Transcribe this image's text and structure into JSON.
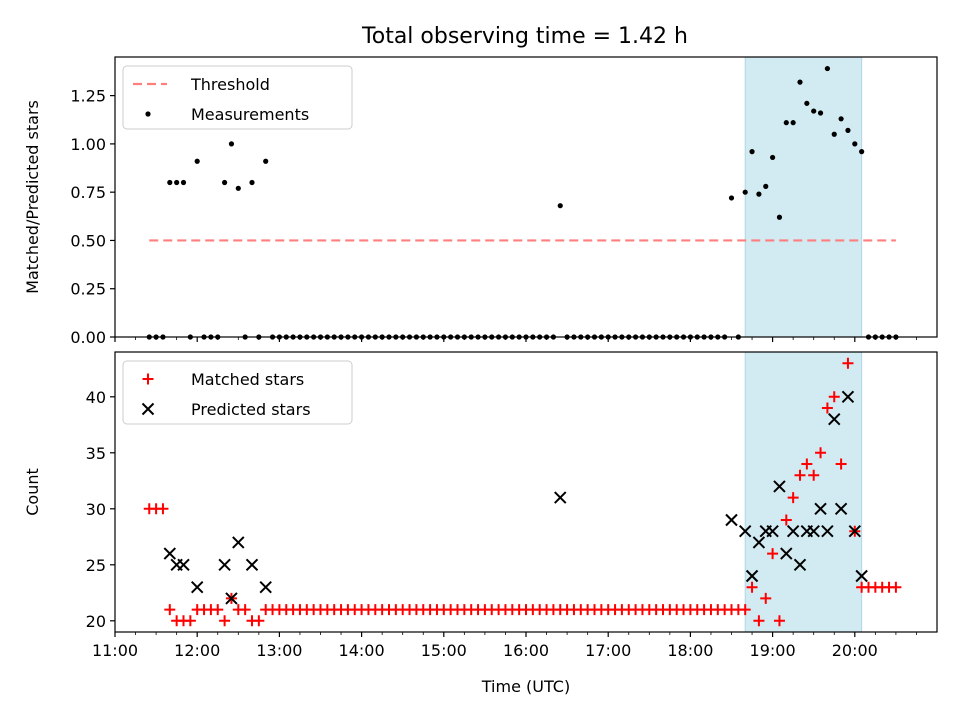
{
  "title": "Total observing time = 1.42 h",
  "colors": {
    "threshold": "#ff7f7f",
    "shade": "#add8e6",
    "matched": "#ff0000",
    "predicted": "#000000",
    "measurement": "#000000"
  },
  "chart_data": [
    {
      "type": "scatter",
      "panel": "top",
      "ylabel": "Matched/Predicted stars",
      "xlabel": "",
      "xlim": [
        "11:00",
        "21:00"
      ],
      "ylim": [
        0,
        1.45
      ],
      "x_ticks": [
        "11:00",
        "12:00",
        "13:00",
        "14:00",
        "15:00",
        "16:00",
        "17:00",
        "18:00",
        "19:00",
        "20:00"
      ],
      "y_ticks": [
        "0.00",
        "0.25",
        "0.50",
        "0.75",
        "1.00",
        "1.25"
      ],
      "legend": {
        "position": "top-left",
        "entries": [
          "Threshold",
          "Measurements"
        ]
      },
      "shaded_interval": [
        "18:40",
        "20:05"
      ],
      "threshold": {
        "name": "Threshold",
        "value": 0.5,
        "x_range": [
          "11:25",
          "20:30"
        ]
      },
      "series": [
        {
          "name": "Measurements",
          "points": [
            [
              "11:25",
              0
            ],
            [
              "11:30",
              0
            ],
            [
              "11:35",
              0
            ],
            [
              "11:40",
              0.8
            ],
            [
              "11:45",
              0.8
            ],
            [
              "11:50",
              0.8
            ],
            [
              "11:55",
              0
            ],
            [
              "12:00",
              0.91
            ],
            [
              "12:05",
              0
            ],
            [
              "12:10",
              0
            ],
            [
              "12:15",
              0
            ],
            [
              "12:20",
              0.8
            ],
            [
              "12:25",
              1.0
            ],
            [
              "12:30",
              0.77
            ],
            [
              "12:35",
              0
            ],
            [
              "12:40",
              0.8
            ],
            [
              "12:45",
              0
            ],
            [
              "12:50",
              0.91
            ],
            [
              "12:55",
              0
            ],
            [
              "13:00",
              0
            ],
            [
              "13:05",
              0
            ],
            [
              "13:10",
              0
            ],
            [
              "13:15",
              0
            ],
            [
              "13:20",
              0
            ],
            [
              "13:25",
              0
            ],
            [
              "13:30",
              0
            ],
            [
              "13:35",
              0
            ],
            [
              "13:40",
              0
            ],
            [
              "13:45",
              0
            ],
            [
              "13:50",
              0
            ],
            [
              "13:55",
              0
            ],
            [
              "14:00",
              0
            ],
            [
              "14:05",
              0
            ],
            [
              "14:10",
              0
            ],
            [
              "14:15",
              0
            ],
            [
              "14:20",
              0
            ],
            [
              "14:25",
              0
            ],
            [
              "14:30",
              0
            ],
            [
              "14:35",
              0
            ],
            [
              "14:40",
              0
            ],
            [
              "14:45",
              0
            ],
            [
              "14:50",
              0
            ],
            [
              "14:55",
              0
            ],
            [
              "15:00",
              0
            ],
            [
              "15:05",
              0
            ],
            [
              "15:10",
              0
            ],
            [
              "15:15",
              0
            ],
            [
              "15:20",
              0
            ],
            [
              "15:25",
              0
            ],
            [
              "15:30",
              0
            ],
            [
              "15:35",
              0
            ],
            [
              "15:40",
              0
            ],
            [
              "15:45",
              0
            ],
            [
              "15:50",
              0
            ],
            [
              "15:55",
              0
            ],
            [
              "16:00",
              0
            ],
            [
              "16:05",
              0
            ],
            [
              "16:10",
              0
            ],
            [
              "16:15",
              0
            ],
            [
              "16:20",
              0
            ],
            [
              "16:25",
              0.68
            ],
            [
              "16:30",
              0
            ],
            [
              "16:35",
              0
            ],
            [
              "16:40",
              0
            ],
            [
              "16:45",
              0
            ],
            [
              "16:50",
              0
            ],
            [
              "16:55",
              0
            ],
            [
              "17:00",
              0
            ],
            [
              "17:05",
              0
            ],
            [
              "17:10",
              0
            ],
            [
              "17:15",
              0
            ],
            [
              "17:20",
              0
            ],
            [
              "17:25",
              0
            ],
            [
              "17:30",
              0
            ],
            [
              "17:35",
              0
            ],
            [
              "17:40",
              0
            ],
            [
              "17:45",
              0
            ],
            [
              "17:50",
              0
            ],
            [
              "17:55",
              0
            ],
            [
              "18:00",
              0
            ],
            [
              "18:05",
              0
            ],
            [
              "18:10",
              0
            ],
            [
              "18:15",
              0
            ],
            [
              "18:20",
              0
            ],
            [
              "18:25",
              0
            ],
            [
              "18:30",
              0.72
            ],
            [
              "18:35",
              0
            ],
            [
              "18:40",
              0.75
            ],
            [
              "18:45",
              0.96
            ],
            [
              "18:50",
              0.74
            ],
            [
              "18:55",
              0.78
            ],
            [
              "19:00",
              0.93
            ],
            [
              "19:05",
              0.62
            ],
            [
              "19:10",
              1.11
            ],
            [
              "19:15",
              1.11
            ],
            [
              "19:20",
              1.32
            ],
            [
              "19:25",
              1.21
            ],
            [
              "19:30",
              1.17
            ],
            [
              "19:35",
              1.16
            ],
            [
              "19:40",
              1.39
            ],
            [
              "19:45",
              1.05
            ],
            [
              "19:50",
              1.13
            ],
            [
              "19:55",
              1.07
            ],
            [
              "20:00",
              1.0
            ],
            [
              "20:05",
              0.96
            ],
            [
              "20:10",
              0
            ],
            [
              "20:15",
              0
            ],
            [
              "20:20",
              0
            ],
            [
              "20:25",
              0
            ],
            [
              "20:30",
              0
            ]
          ]
        }
      ]
    },
    {
      "type": "scatter",
      "panel": "bottom",
      "ylabel": "Count",
      "xlabel": "Time (UTC)",
      "xlim": [
        "11:00",
        "21:00"
      ],
      "ylim": [
        19,
        44
      ],
      "x_ticks": [
        "11:00",
        "12:00",
        "13:00",
        "14:00",
        "15:00",
        "16:00",
        "17:00",
        "18:00",
        "19:00",
        "20:00"
      ],
      "y_ticks": [
        "20",
        "25",
        "30",
        "35",
        "40"
      ],
      "legend": {
        "position": "top-left",
        "entries": [
          "Matched stars",
          "Predicted stars"
        ]
      },
      "shaded_interval": [
        "18:40",
        "20:05"
      ],
      "series": [
        {
          "name": "Matched stars",
          "marker": "plus",
          "points": [
            [
              "11:25",
              30
            ],
            [
              "11:30",
              30
            ],
            [
              "11:35",
              30
            ],
            [
              "11:40",
              21
            ],
            [
              "11:45",
              20
            ],
            [
              "11:50",
              20
            ],
            [
              "11:55",
              20
            ],
            [
              "12:00",
              21
            ],
            [
              "12:05",
              21
            ],
            [
              "12:10",
              21
            ],
            [
              "12:15",
              21
            ],
            [
              "12:20",
              20
            ],
            [
              "12:25",
              22
            ],
            [
              "12:30",
              21
            ],
            [
              "12:35",
              21
            ],
            [
              "12:40",
              20
            ],
            [
              "12:45",
              20
            ],
            [
              "12:50",
              21
            ],
            [
              "12:55",
              21
            ],
            [
              "13:00",
              21
            ],
            [
              "13:05",
              21
            ],
            [
              "13:10",
              21
            ],
            [
              "13:15",
              21
            ],
            [
              "13:20",
              21
            ],
            [
              "13:25",
              21
            ],
            [
              "13:30",
              21
            ],
            [
              "13:35",
              21
            ],
            [
              "13:40",
              21
            ],
            [
              "13:45",
              21
            ],
            [
              "13:50",
              21
            ],
            [
              "13:55",
              21
            ],
            [
              "14:00",
              21
            ],
            [
              "14:05",
              21
            ],
            [
              "14:10",
              21
            ],
            [
              "14:15",
              21
            ],
            [
              "14:20",
              21
            ],
            [
              "14:25",
              21
            ],
            [
              "14:30",
              21
            ],
            [
              "14:35",
              21
            ],
            [
              "14:40",
              21
            ],
            [
              "14:45",
              21
            ],
            [
              "14:50",
              21
            ],
            [
              "14:55",
              21
            ],
            [
              "15:00",
              21
            ],
            [
              "15:05",
              21
            ],
            [
              "15:10",
              21
            ],
            [
              "15:15",
              21
            ],
            [
              "15:20",
              21
            ],
            [
              "15:25",
              21
            ],
            [
              "15:30",
              21
            ],
            [
              "15:35",
              21
            ],
            [
              "15:40",
              21
            ],
            [
              "15:45",
              21
            ],
            [
              "15:50",
              21
            ],
            [
              "15:55",
              21
            ],
            [
              "16:00",
              21
            ],
            [
              "16:05",
              21
            ],
            [
              "16:10",
              21
            ],
            [
              "16:15",
              21
            ],
            [
              "16:20",
              21
            ],
            [
              "16:25",
              21
            ],
            [
              "16:30",
              21
            ],
            [
              "16:35",
              21
            ],
            [
              "16:40",
              21
            ],
            [
              "16:45",
              21
            ],
            [
              "16:50",
              21
            ],
            [
              "16:55",
              21
            ],
            [
              "17:00",
              21
            ],
            [
              "17:05",
              21
            ],
            [
              "17:10",
              21
            ],
            [
              "17:15",
              21
            ],
            [
              "17:20",
              21
            ],
            [
              "17:25",
              21
            ],
            [
              "17:30",
              21
            ],
            [
              "17:35",
              21
            ],
            [
              "17:40",
              21
            ],
            [
              "17:45",
              21
            ],
            [
              "17:50",
              21
            ],
            [
              "17:55",
              21
            ],
            [
              "18:00",
              21
            ],
            [
              "18:05",
              21
            ],
            [
              "18:10",
              21
            ],
            [
              "18:15",
              21
            ],
            [
              "18:20",
              21
            ],
            [
              "18:25",
              21
            ],
            [
              "18:30",
              21
            ],
            [
              "18:35",
              21
            ],
            [
              "18:40",
              21
            ],
            [
              "18:45",
              23
            ],
            [
              "18:50",
              20
            ],
            [
              "18:55",
              22
            ],
            [
              "19:00",
              26
            ],
            [
              "19:05",
              20
            ],
            [
              "19:10",
              29
            ],
            [
              "19:15",
              31
            ],
            [
              "19:20",
              33
            ],
            [
              "19:25",
              34
            ],
            [
              "19:30",
              33
            ],
            [
              "19:35",
              35
            ],
            [
              "19:40",
              39
            ],
            [
              "19:45",
              40
            ],
            [
              "19:50",
              34
            ],
            [
              "19:55",
              43
            ],
            [
              "20:00",
              28
            ],
            [
              "20:05",
              23
            ],
            [
              "20:10",
              23
            ],
            [
              "20:15",
              23
            ],
            [
              "20:20",
              23
            ],
            [
              "20:25",
              23
            ],
            [
              "20:30",
              23
            ]
          ]
        },
        {
          "name": "Predicted stars",
          "marker": "x",
          "points": [
            [
              "11:40",
              26
            ],
            [
              "11:45",
              25
            ],
            [
              "11:50",
              25
            ],
            [
              "12:00",
              23
            ],
            [
              "12:20",
              25
            ],
            [
              "12:25",
              22
            ],
            [
              "12:30",
              27
            ],
            [
              "12:40",
              25
            ],
            [
              "12:50",
              23
            ],
            [
              "16:25",
              31
            ],
            [
              "18:30",
              29
            ],
            [
              "18:40",
              28
            ],
            [
              "18:45",
              24
            ],
            [
              "18:50",
              27
            ],
            [
              "18:55",
              28
            ],
            [
              "19:00",
              28
            ],
            [
              "19:05",
              32
            ],
            [
              "19:10",
              26
            ],
            [
              "19:15",
              28
            ],
            [
              "19:20",
              25
            ],
            [
              "19:25",
              28
            ],
            [
              "19:30",
              28
            ],
            [
              "19:35",
              30
            ],
            [
              "19:40",
              28
            ],
            [
              "19:45",
              38
            ],
            [
              "19:50",
              30
            ],
            [
              "19:55",
              40
            ],
            [
              "20:00",
              28
            ],
            [
              "20:05",
              24
            ]
          ]
        }
      ]
    }
  ]
}
